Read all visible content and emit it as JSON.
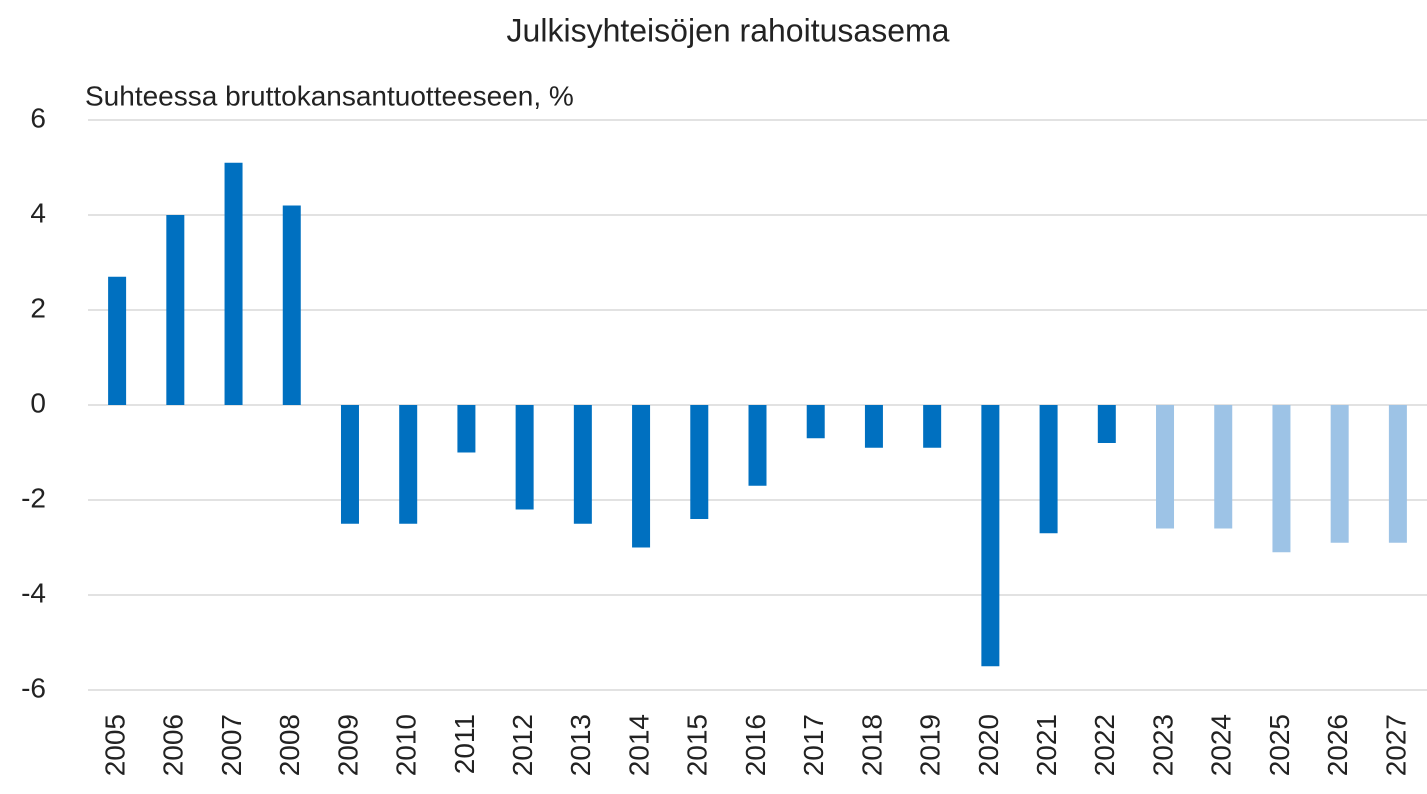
{
  "chart_data": {
    "type": "bar",
    "title": "Julkisyhteisöjen rahoitusasema",
    "subtitle": "Suhteessa bruttokansantuotteeseen, %",
    "categories": [
      "2005",
      "2006",
      "2007",
      "2008",
      "2009",
      "2010",
      "2011",
      "2012",
      "2013",
      "2014",
      "2015",
      "2016",
      "2017",
      "2018",
      "2019",
      "2020",
      "2021",
      "2022",
      "2023",
      "2024",
      "2025",
      "2026",
      "2027"
    ],
    "values": [
      2.7,
      4.0,
      5.1,
      4.2,
      -2.5,
      -2.5,
      -1.0,
      -2.2,
      -2.5,
      -3.0,
      -2.4,
      -1.7,
      -0.7,
      -0.9,
      -0.9,
      -5.5,
      -2.7,
      -0.8,
      -2.6,
      -2.6,
      -3.1,
      -2.9,
      -2.9
    ],
    "colors": [
      "#0070c0",
      "#0070c0",
      "#0070c0",
      "#0070c0",
      "#0070c0",
      "#0070c0",
      "#0070c0",
      "#0070c0",
      "#0070c0",
      "#0070c0",
      "#0070c0",
      "#0070c0",
      "#0070c0",
      "#0070c0",
      "#0070c0",
      "#0070c0",
      "#0070c0",
      "#0070c0",
      "#9dc3e6",
      "#9dc3e6",
      "#9dc3e6",
      "#9dc3e6",
      "#9dc3e6"
    ],
    "ylim": [
      -6,
      6
    ],
    "yticks": [
      -6,
      -4,
      -2,
      0,
      2,
      4,
      6
    ],
    "grid": true
  }
}
